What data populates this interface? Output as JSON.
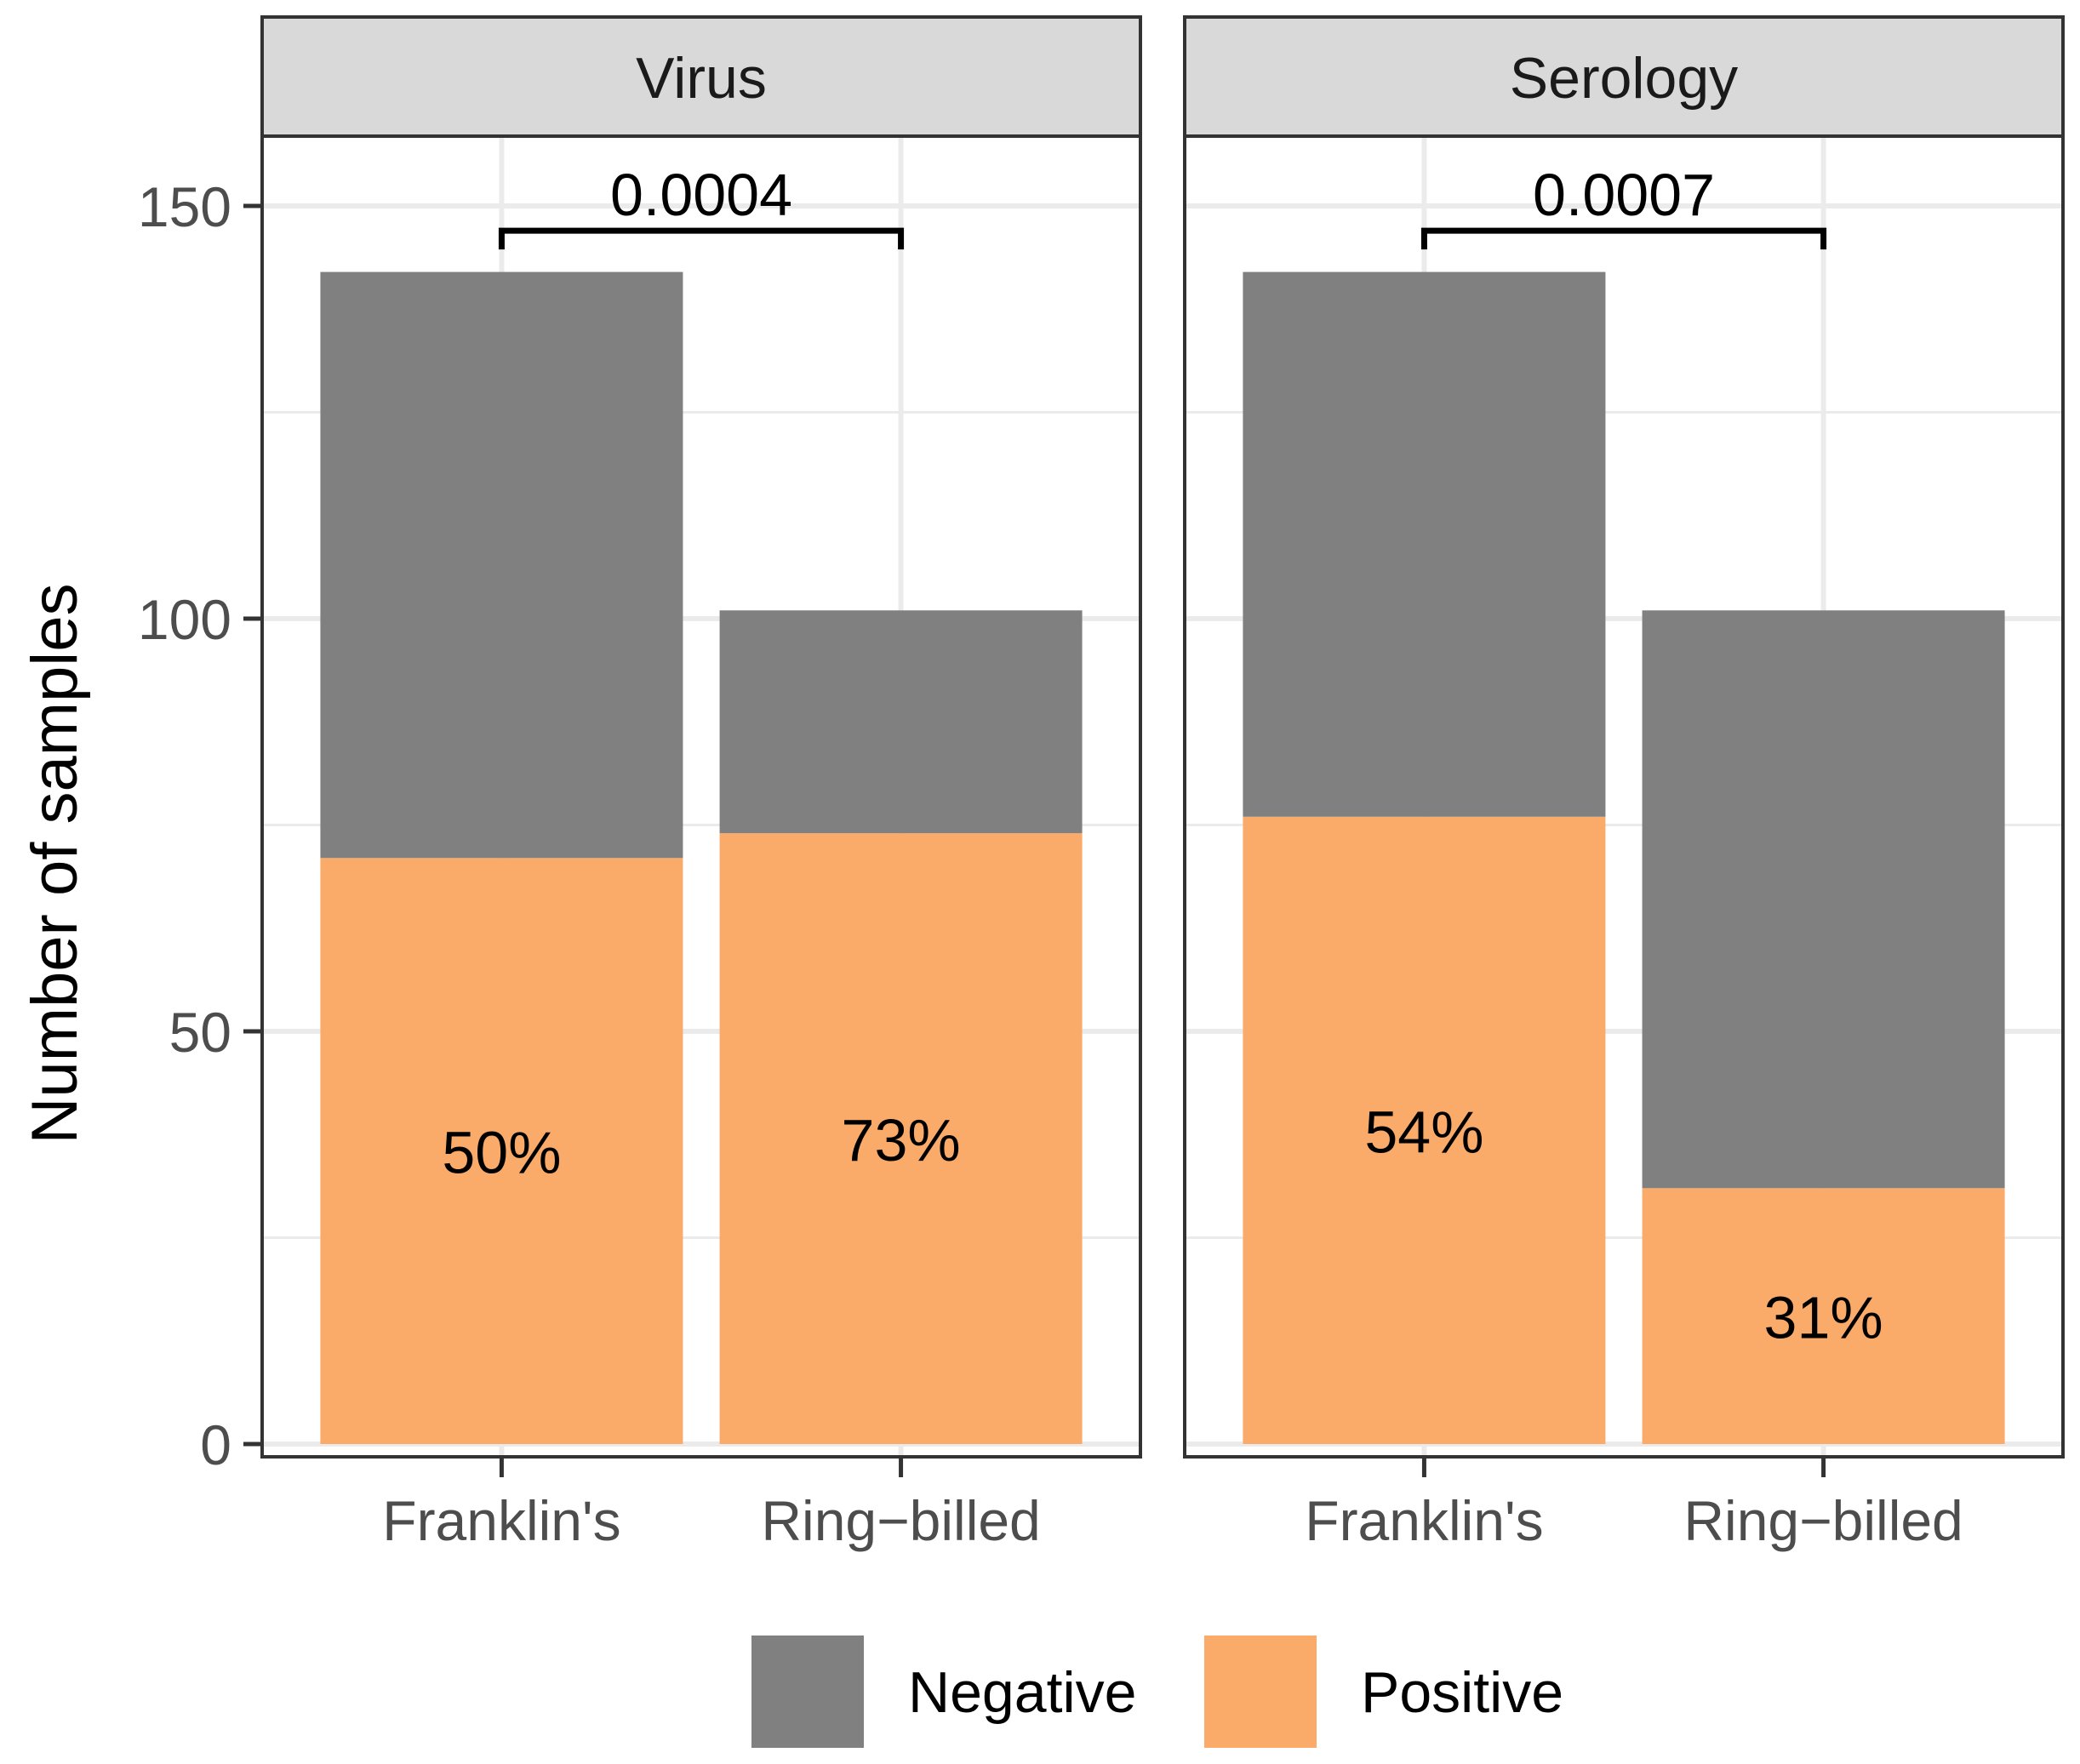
{
  "chart_data": {
    "type": "bar",
    "stacked": true,
    "ylabel": "Number of samples",
    "ylim": [
      0,
      160
    ],
    "yticks": [
      0,
      50,
      100,
      150
    ],
    "grid": true,
    "legend_position": "bottom",
    "categories": [
      "Franklin's",
      "Ring−billed"
    ],
    "colors": {
      "Negative": "#808080",
      "Positive": "#FAAA69",
      "panel_border": "#333333",
      "strip_fill": "#D9D9D9",
      "grid": "#EBEBEB"
    },
    "legend": [
      {
        "name": "Negative",
        "color": "#808080"
      },
      {
        "name": "Positive",
        "color": "#FAAA69"
      }
    ],
    "panels": [
      {
        "title": "Virus",
        "series": [
          {
            "name": "Positive",
            "values": [
              71,
              74
            ]
          },
          {
            "name": "Negative",
            "values": [
              71,
              27
            ]
          }
        ],
        "percent_labels": [
          "50%",
          "73%"
        ],
        "comparison": {
          "label": "0.0004",
          "y": 147
        }
      },
      {
        "title": "Serology",
        "series": [
          {
            "name": "Positive",
            "values": [
              76,
              31
            ]
          },
          {
            "name": "Negative",
            "values": [
              66,
              70
            ]
          }
        ],
        "percent_labels": [
          "54%",
          "31%"
        ],
        "comparison": {
          "label": "0.0007",
          "y": 147
        }
      }
    ]
  }
}
